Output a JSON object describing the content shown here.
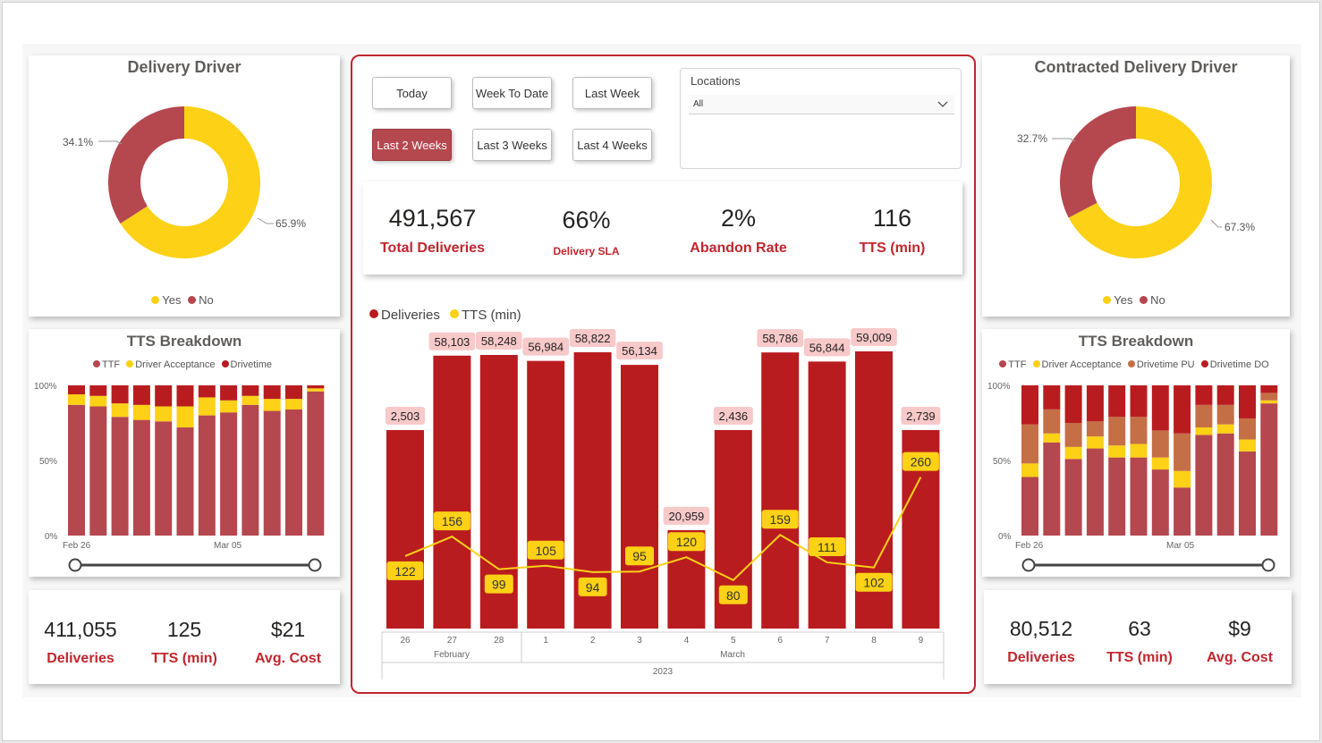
{
  "colors": {
    "red": "#b91c1f",
    "yellow": "#fcd116",
    "brick": "#b5474f",
    "orange": "#c56f47",
    "accent": "#c0262d"
  },
  "left_donut": {
    "title": "Delivery Driver",
    "chart_data": {
      "type": "pie",
      "donut": true,
      "slices": [
        {
          "label": "Yes",
          "value": 65.9
        },
        {
          "label": "No",
          "value": 34.1
        }
      ]
    },
    "label_yes": "65.9%",
    "label_no": "34.1%",
    "legend": [
      "Yes",
      "No"
    ]
  },
  "right_donut": {
    "title": "Contracted Delivery Driver",
    "chart_data": {
      "type": "pie",
      "donut": true,
      "slices": [
        {
          "label": "Yes",
          "value": 67.3
        },
        {
          "label": "No",
          "value": 32.7
        }
      ]
    },
    "label_yes": "67.3%",
    "label_no": "32.7%",
    "legend": [
      "Yes",
      "No"
    ]
  },
  "left_tts": {
    "title": "TTS Breakdown",
    "legend": [
      "TTF",
      "Driver Acceptance",
      "Drivetime"
    ],
    "y_ticks": [
      "100%",
      "50%",
      "0%"
    ],
    "x_ticks": [
      "Feb 26",
      "Mar 05"
    ],
    "chart_data": {
      "type": "bar",
      "stacked": "100%",
      "categories": [
        "Feb 26",
        "Feb 27",
        "Feb 28",
        "Mar 1",
        "Mar 2",
        "Mar 3",
        "Mar 4",
        "Mar 5",
        "Mar 6",
        "Mar 7",
        "Mar 8",
        "Mar 9"
      ],
      "series": [
        {
          "name": "Drivetime",
          "values": [
            87,
            86,
            79,
            77,
            76,
            72,
            80,
            82,
            87,
            83,
            84,
            96
          ]
        },
        {
          "name": "Driver Acceptance",
          "values": [
            7,
            7,
            9,
            10,
            10,
            14,
            12,
            8,
            6,
            8,
            7,
            2
          ]
        },
        {
          "name": "TTF",
          "values": [
            6,
            7,
            12,
            13,
            14,
            14,
            8,
            10,
            7,
            9,
            9,
            2
          ]
        }
      ]
    }
  },
  "right_tts": {
    "title": "TTS Breakdown",
    "legend": [
      "TTF",
      "Driver Acceptance",
      "Drivetime PU",
      "Drivetime DO"
    ],
    "y_ticks": [
      "100%",
      "50%",
      "0%"
    ],
    "x_ticks": [
      "Feb 26",
      "Mar 05"
    ],
    "chart_data": {
      "type": "bar",
      "stacked": "100%",
      "categories": [
        "Feb 26",
        "Feb 27",
        "Feb 28",
        "Mar 1",
        "Mar 2",
        "Mar 3",
        "Mar 4",
        "Mar 5",
        "Mar 6",
        "Mar 7",
        "Mar 8",
        "Mar 9"
      ],
      "series": [
        {
          "name": "Drivetime DO",
          "values": [
            39,
            62,
            51,
            58,
            52,
            52,
            44,
            32,
            67,
            68,
            56,
            88
          ]
        },
        {
          "name": "Driver Acceptance",
          "values": [
            9,
            6,
            8,
            8,
            8,
            9,
            8,
            11,
            5,
            6,
            8,
            2
          ]
        },
        {
          "name": "Drivetime PU",
          "values": [
            26,
            16,
            16,
            10,
            19,
            18,
            18,
            25,
            15,
            13,
            14,
            5
          ]
        },
        {
          "name": "TTF",
          "values": [
            26,
            16,
            25,
            24,
            21,
            21,
            30,
            32,
            13,
            13,
            22,
            5
          ]
        }
      ]
    }
  },
  "left_kpis": [
    {
      "value": "411,055",
      "label": "Deliveries"
    },
    {
      "value": "125",
      "label": "TTS (min)"
    },
    {
      "value": "$21",
      "label": "Avg. Cost"
    }
  ],
  "right_kpis": [
    {
      "value": "80,512",
      "label": "Deliveries"
    },
    {
      "value": "63",
      "label": "TTS (min)"
    },
    {
      "value": "$9",
      "label": "Avg. Cost"
    }
  ],
  "buttons": [
    "Today",
    "Week To Date",
    "Last Week",
    "Last 2 Weeks",
    "Last 3 Weeks",
    "Last 4 Weeks"
  ],
  "active_button": "Last 2 Weeks",
  "locations": {
    "title": "Locations",
    "value": "All"
  },
  "center_kpis": [
    {
      "value": "491,567",
      "label": "Total Deliveries"
    },
    {
      "value": "66%",
      "label": "Delivery SLA"
    },
    {
      "value": "2%",
      "label": "Abandon Rate"
    },
    {
      "value": "116",
      "label": "TTS (min)"
    }
  ],
  "main_chart": {
    "legend": [
      "Deliveries",
      "TTS (min)"
    ],
    "month_labels": [
      "February",
      "March"
    ],
    "year_label": "2023",
    "chart_data": {
      "type": "bar",
      "combo": "bar+line",
      "categories": [
        "26",
        "27",
        "28",
        "1",
        "2",
        "3",
        "4",
        "5",
        "6",
        "7",
        "8",
        "9"
      ],
      "series": [
        {
          "name": "Deliveries",
          "type": "bar",
          "values": [
            2503,
            58103,
            58248,
            56984,
            58822,
            56134,
            20959,
            2436,
            58786,
            56844,
            59009,
            2739
          ],
          "labels": [
            "2,503",
            "58,103",
            "58,248",
            "56,984",
            "58,822",
            "56,134",
            "20,959",
            "2,436",
            "58,786",
            "56,844",
            "59,009",
            "2,739"
          ]
        },
        {
          "name": "TTS (min)",
          "type": "line",
          "values": [
            122,
            156,
            99,
            105,
            94,
            95,
            120,
            80,
            159,
            111,
            102,
            260
          ]
        }
      ]
    }
  }
}
